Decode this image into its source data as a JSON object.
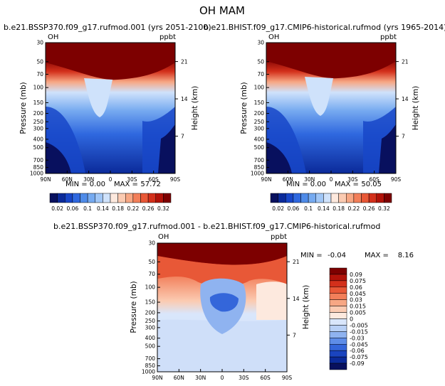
{
  "page_title": "OH MAM",
  "chart_data": [
    {
      "type": "heatmap",
      "id": "future",
      "title": "b.e21.BSSP370.f09_g17.rufmod.001 (yrs 2051-2100)",
      "left_label": "OH",
      "units": "ppbt",
      "ylabel": "Pressure (mb)",
      "ylabel_right": "Height (km)",
      "x_ticks": [
        "90N",
        "60N",
        "30N",
        "0",
        "30S",
        "60S",
        "90S"
      ],
      "y_ticks": [
        "30",
        "50",
        "70",
        "100",
        "150",
        "200",
        "250",
        "300",
        "400",
        "500",
        "700",
        "850",
        "1000"
      ],
      "height_ticks": [
        "21",
        "14",
        "7"
      ],
      "stats": {
        "min_label": "MIN =",
        "min": "0.00",
        "max_label": "MAX =",
        "max": "57.72"
      },
      "colorbar": {
        "labels": [
          "0.02",
          "0.06",
          "0.1",
          "0.14",
          "0.18",
          "0.22",
          "0.26",
          "0.32"
        ],
        "colors": [
          "#08105e",
          "#0b2a9a",
          "#1846c8",
          "#2f68df",
          "#4f8be8",
          "#76aaf0",
          "#a0c6f6",
          "#cfe2fb",
          "#fde9de",
          "#fbcbb2",
          "#f7a784",
          "#f27f5a",
          "#e85837",
          "#d3301b",
          "#b11209",
          "#7d0000"
        ]
      }
    },
    {
      "type": "heatmap",
      "id": "historical",
      "title": "b.e21.BHIST.f09_g17.CMIP6-historical.rufmod (yrs 1965-2014)",
      "left_label": "OH",
      "units": "ppbt",
      "ylabel": "Pressure (mb)",
      "ylabel_right": "Height (km)",
      "x_ticks": [
        "90N",
        "60N",
        "30N",
        "0",
        "30S",
        "60S",
        "90S"
      ],
      "y_ticks": [
        "30",
        "50",
        "70",
        "100",
        "150",
        "200",
        "250",
        "300",
        "400",
        "500",
        "700",
        "850",
        "1000"
      ],
      "height_ticks": [
        "21",
        "14",
        "7"
      ],
      "stats": {
        "min_label": "MIN =",
        "min": "0.00",
        "max_label": "MAX =",
        "max": "50.05"
      },
      "colorbar": {
        "labels": [
          "0.02",
          "0.06",
          "0.1",
          "0.14",
          "0.18",
          "0.22",
          "0.26",
          "0.32"
        ],
        "colors": [
          "#08105e",
          "#0b2a9a",
          "#1846c8",
          "#2f68df",
          "#4f8be8",
          "#76aaf0",
          "#a0c6f6",
          "#cfe2fb",
          "#fde9de",
          "#fbcbb2",
          "#f7a784",
          "#f27f5a",
          "#e85837",
          "#d3301b",
          "#b11209",
          "#7d0000"
        ]
      }
    },
    {
      "type": "heatmap",
      "id": "difference",
      "title": "b.e21.BSSP370.f09_g17.rufmod.001 - b.e21.BHIST.f09_g17.CMIP6-historical.rufmod",
      "left_label": "OH",
      "units": "ppbt",
      "ylabel": "Pressure (mb)",
      "ylabel_right": "Height (km)",
      "x_ticks": [
        "90N",
        "60N",
        "30N",
        "0",
        "30S",
        "60S",
        "90S"
      ],
      "y_ticks": [
        "30",
        "50",
        "70",
        "100",
        "150",
        "200",
        "250",
        "300",
        "400",
        "500",
        "700",
        "850",
        "1000"
      ],
      "height_ticks": [
        "21",
        "14",
        "7"
      ],
      "stats": {
        "min_label": "MIN =",
        "min": "-0.04",
        "max_label": "MAX =",
        "max": "8.16"
      },
      "colorbar": {
        "labels": [
          "0.09",
          "0.075",
          "0.06",
          "0.045",
          "0.03",
          "0.015",
          "0.005",
          "0",
          "-0.005",
          "-0.015",
          "-0.03",
          "-0.045",
          "-0.06",
          "-0.075",
          "-0.09"
        ],
        "colors": [
          "#7d0000",
          "#b11209",
          "#d3301b",
          "#e85837",
          "#f27f5a",
          "#f7a784",
          "#fbcbb2",
          "#fde9de",
          "#d9e6fb",
          "#b8d0f6",
          "#8fb3f0",
          "#5e8de8",
          "#3466da",
          "#1a44bf",
          "#0b2a9a",
          "#08105e"
        ]
      }
    }
  ]
}
